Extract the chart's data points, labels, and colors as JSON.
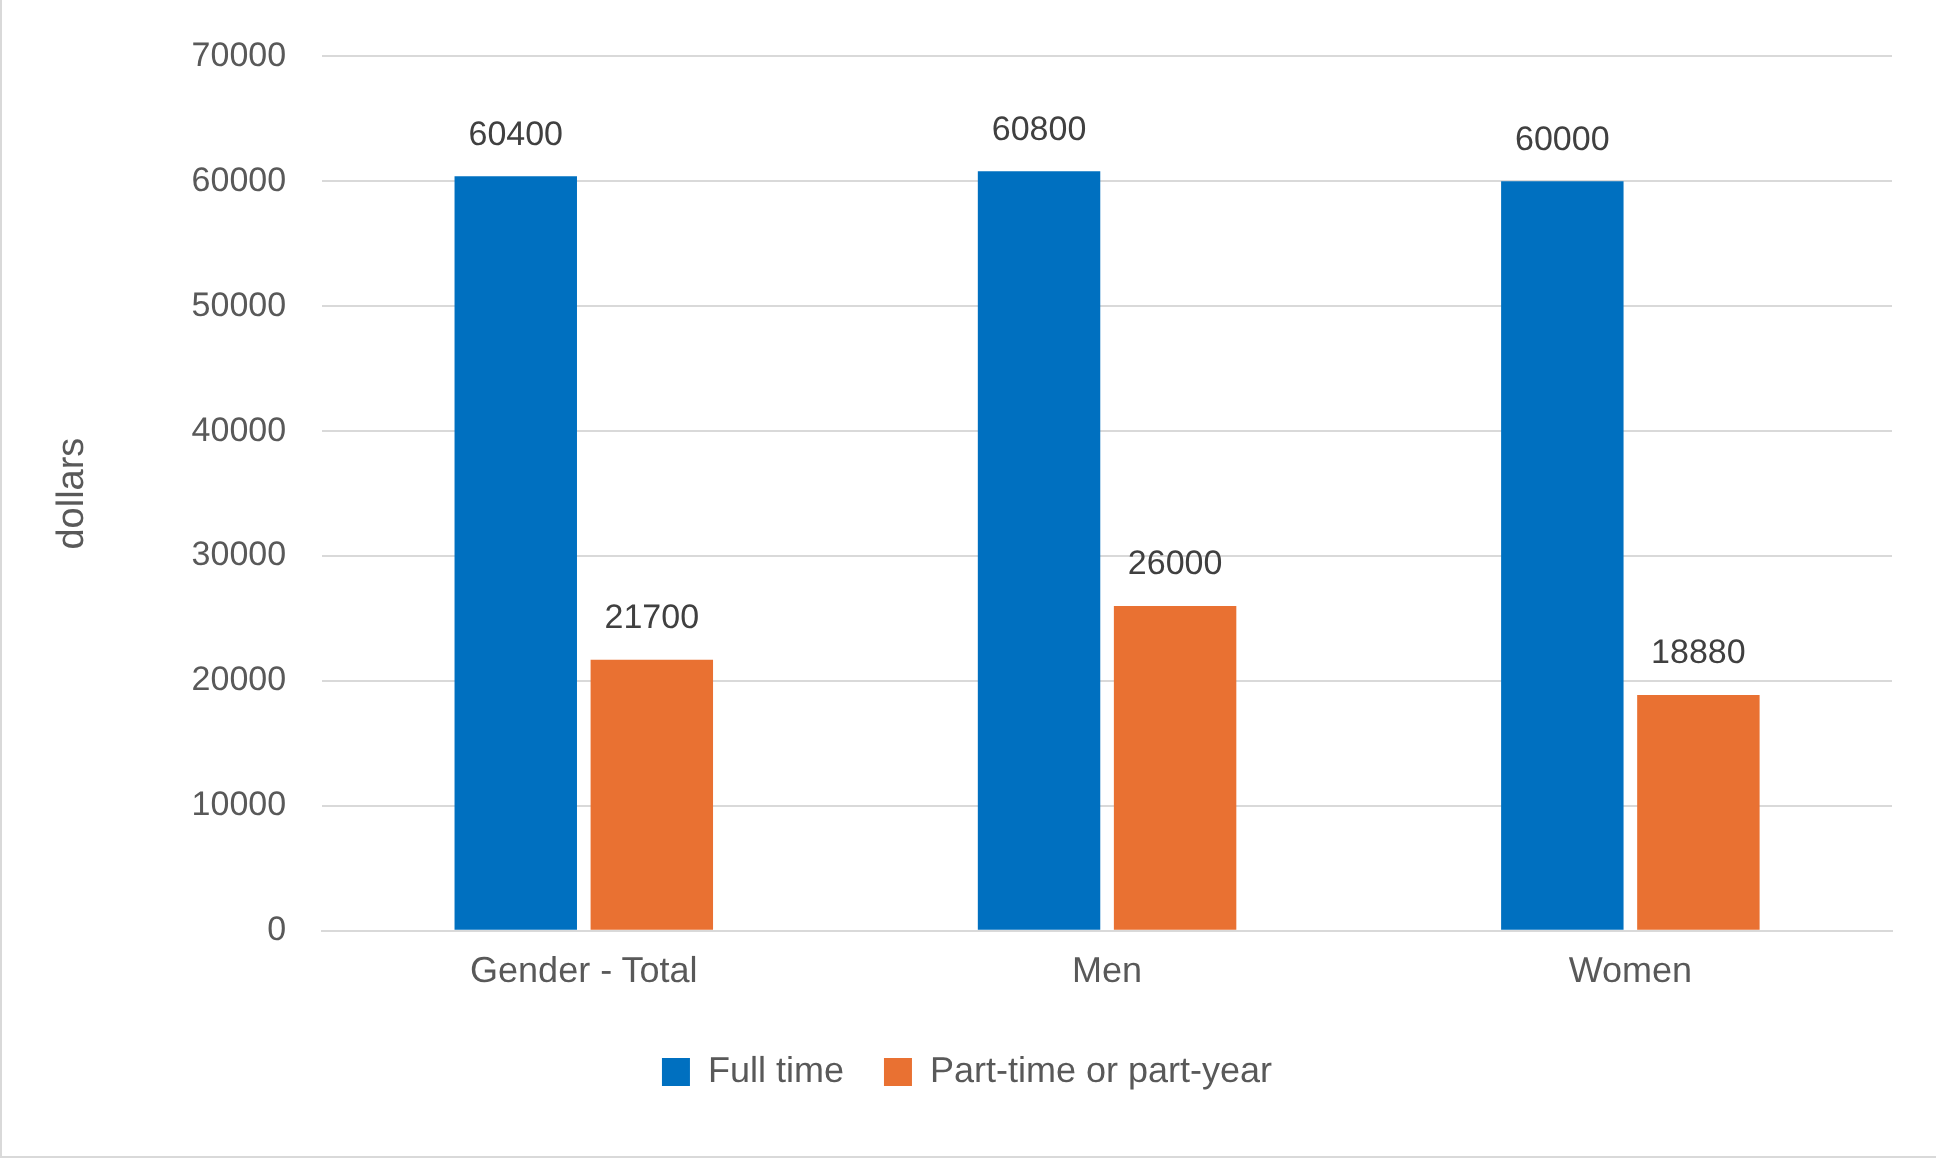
{
  "chart_data": {
    "type": "bar",
    "ylabel": "dollars",
    "categories": [
      "Gender - Total",
      "Men",
      "Women"
    ],
    "series": [
      {
        "name": "Full time",
        "color": "#0070c0",
        "values": [
          60400,
          60800,
          60000
        ]
      },
      {
        "name": "Part-time or part-year",
        "color": "#e97132",
        "values": [
          21700,
          26000,
          18880
        ]
      }
    ],
    "ylim": [
      0,
      70000
    ],
    "yticks": [
      0,
      10000,
      20000,
      30000,
      40000,
      50000,
      60000,
      70000
    ],
    "grid": "y",
    "legend": "bottom",
    "data_labels": true
  }
}
